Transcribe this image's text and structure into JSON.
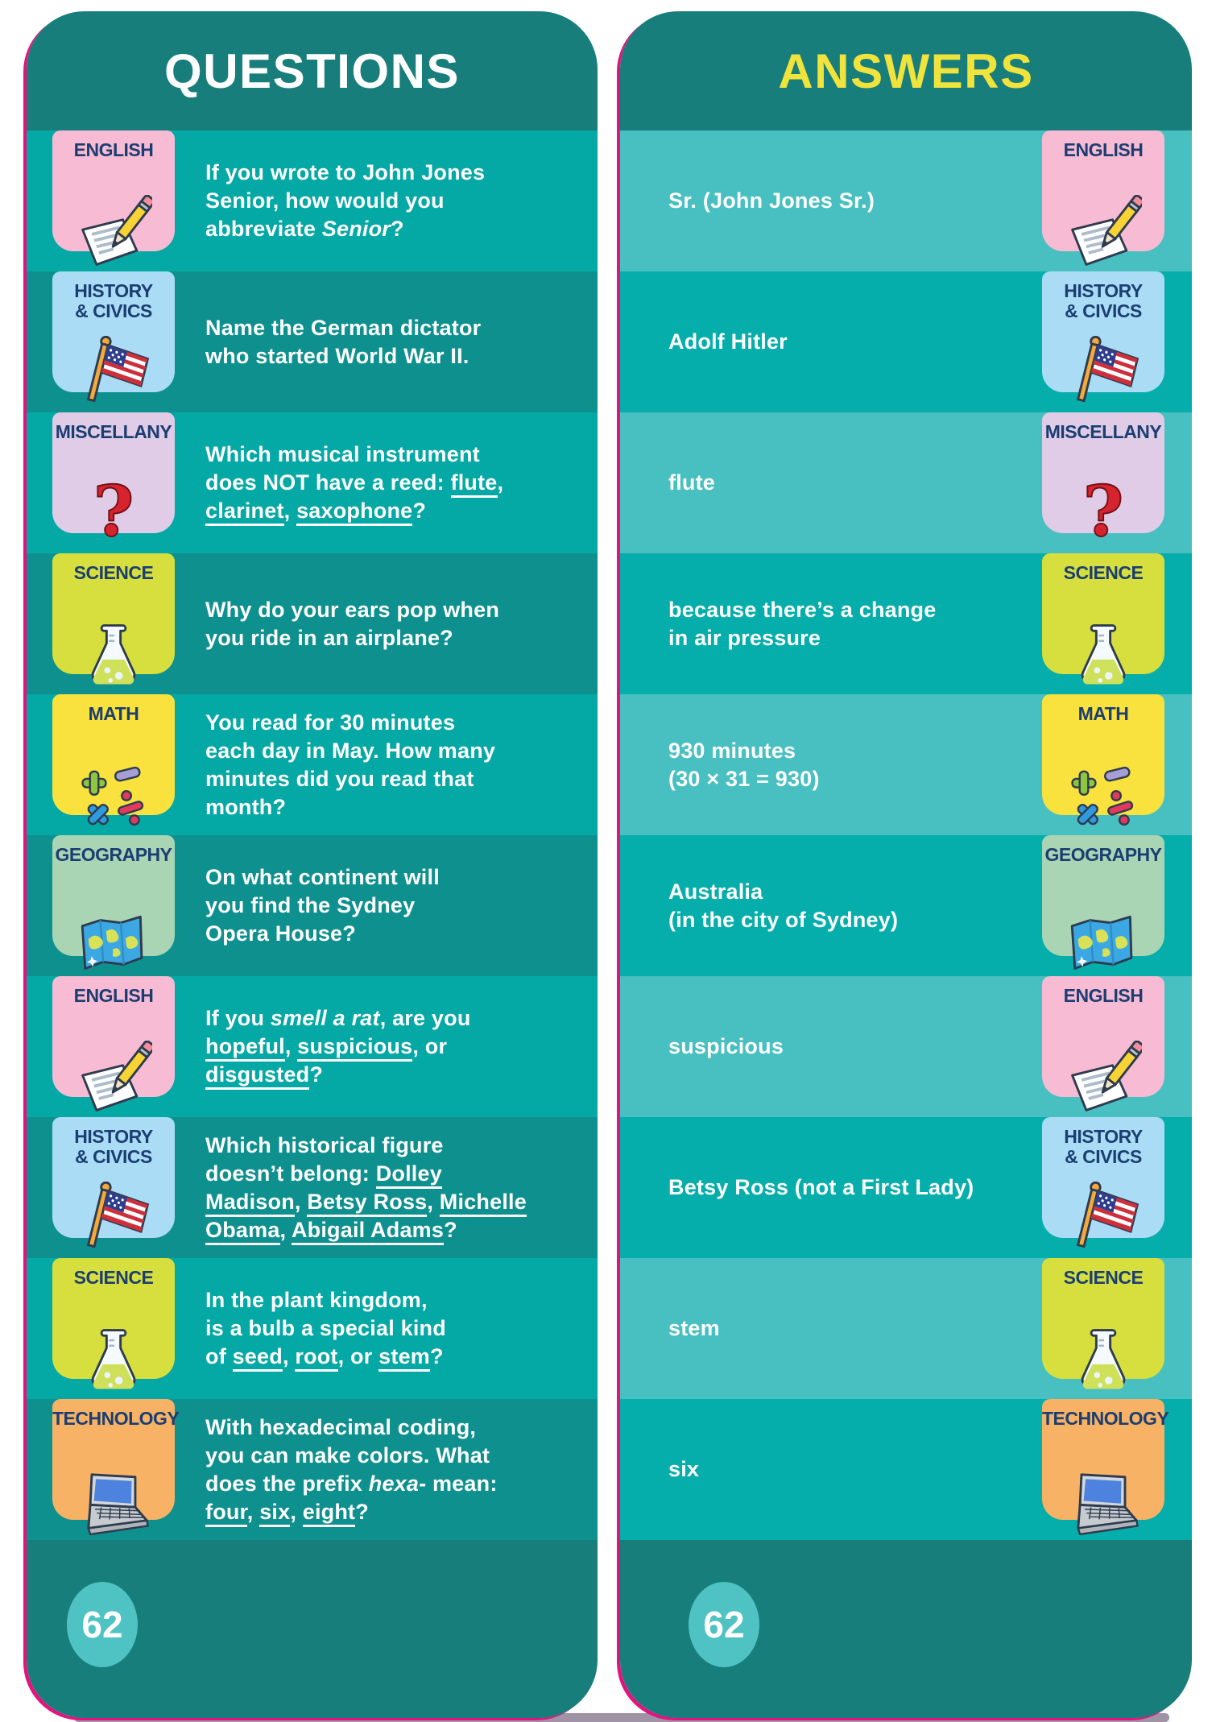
{
  "page": {
    "background": "#FFFFFF",
    "edge_color": "#E3137E",
    "bottom_bar_color": "#A093A6",
    "badge_label_color": "#1B3E72",
    "circle_color": "#4FC2C4"
  },
  "categories": {
    "english": {
      "label": "ENGLISH",
      "label_lines": [
        "ENGLISH"
      ],
      "color": "#F8BBD4",
      "icon": "paper-pencil-icon"
    },
    "history": {
      "label": "HISTORY & CIVICS",
      "label_lines": [
        "HISTORY",
        "& CIVICS"
      ],
      "color": "#ABDCF5",
      "icon": "us-flag-icon"
    },
    "miscellany": {
      "label": "MISCELLANY",
      "label_lines": [
        "MISCELLANY"
      ],
      "color": "#E0CCE6",
      "icon": "question-mark-icon"
    },
    "science": {
      "label": "SCIENCE",
      "label_lines": [
        "SCIENCE"
      ],
      "color": "#D6DF3E",
      "icon": "flask-icon"
    },
    "math": {
      "label": "MATH",
      "label_lines": [
        "MATH"
      ],
      "color": "#F9E23D",
      "icon": "math-symbols-icon"
    },
    "geography": {
      "label": "GEOGRAPHY",
      "label_lines": [
        "GEOGRAPHY"
      ],
      "color": "#A9D5B4",
      "icon": "map-icon"
    },
    "technology": {
      "label": "TECHNOLOGY",
      "label_lines": [
        "TECHNOLOGY"
      ],
      "color": "#F7B266",
      "icon": "laptop-icon"
    }
  },
  "cards": [
    {
      "title": "QUESTIONS",
      "title_color": "#FFFFFF",
      "header_color": "#177E7B",
      "row_colors": [
        "#04A8A5",
        "#0E908F"
      ],
      "badge_side": "left",
      "page_number": "62",
      "rows": [
        {
          "category": "english",
          "segments": [
            {
              "t": "If you wrote to John Jones"
            },
            {
              "br": true
            },
            {
              "t": "Senior, how would you"
            },
            {
              "br": true
            },
            {
              "t": "abbreviate "
            },
            {
              "t": "Senior",
              "i": true
            },
            {
              "t": "?"
            }
          ]
        },
        {
          "category": "history",
          "segments": [
            {
              "t": "Name the German dictator"
            },
            {
              "br": true
            },
            {
              "t": "who started World War II."
            }
          ]
        },
        {
          "category": "miscellany",
          "segments": [
            {
              "t": "Which musical instrument"
            },
            {
              "br": true
            },
            {
              "t": "does NOT have a reed: "
            },
            {
              "t": "flute",
              "u": true
            },
            {
              "t": ","
            },
            {
              "br": true
            },
            {
              "t": "clarinet",
              "u": true
            },
            {
              "t": ", "
            },
            {
              "t": "saxophone",
              "u": true
            },
            {
              "t": "?"
            }
          ]
        },
        {
          "category": "science",
          "segments": [
            {
              "t": "Why do your ears pop when"
            },
            {
              "br": true
            },
            {
              "t": "you ride in an airplane?"
            }
          ]
        },
        {
          "category": "math",
          "segments": [
            {
              "t": "You read for 30 minutes"
            },
            {
              "br": true
            },
            {
              "t": "each day in May. How many"
            },
            {
              "br": true
            },
            {
              "t": "minutes did you read that"
            },
            {
              "br": true
            },
            {
              "t": "month?"
            }
          ]
        },
        {
          "category": "geography",
          "segments": [
            {
              "t": "On what continent will"
            },
            {
              "br": true
            },
            {
              "t": "you find the Sydney"
            },
            {
              "br": true
            },
            {
              "t": "Opera House?"
            }
          ]
        },
        {
          "category": "english",
          "segments": [
            {
              "t": "If you "
            },
            {
              "t": "smell a rat",
              "i": true
            },
            {
              "t": ", are you"
            },
            {
              "br": true
            },
            {
              "t": "hopeful",
              "u": true
            },
            {
              "t": ", "
            },
            {
              "t": "suspicious",
              "u": true
            },
            {
              "t": ", or"
            },
            {
              "br": true
            },
            {
              "t": "disgusted",
              "u": true
            },
            {
              "t": "?"
            }
          ]
        },
        {
          "category": "history",
          "segments": [
            {
              "t": "Which historical figure"
            },
            {
              "br": true
            },
            {
              "t": "doesn’t belong: "
            },
            {
              "t": "Dolley",
              "u": true
            },
            {
              "br": true
            },
            {
              "t": "Madison",
              "u": true
            },
            {
              "t": ", "
            },
            {
              "t": "Betsy Ross",
              "u": true
            },
            {
              "t": ", "
            },
            {
              "t": "Michelle",
              "u": true
            },
            {
              "br": true
            },
            {
              "t": "Obama",
              "u": true
            },
            {
              "t": ", "
            },
            {
              "t": "Abigail Adams",
              "u": true
            },
            {
              "t": "?"
            }
          ]
        },
        {
          "category": "science",
          "segments": [
            {
              "t": "In the plant kingdom,"
            },
            {
              "br": true
            },
            {
              "t": "is a bulb a special kind"
            },
            {
              "br": true
            },
            {
              "t": "of "
            },
            {
              "t": "seed",
              "u": true
            },
            {
              "t": ", "
            },
            {
              "t": "root",
              "u": true
            },
            {
              "t": ", or "
            },
            {
              "t": "stem",
              "u": true
            },
            {
              "t": "?"
            }
          ]
        },
        {
          "category": "technology",
          "segments": [
            {
              "t": "With hexadecimal coding,"
            },
            {
              "br": true
            },
            {
              "t": "you can make colors. What"
            },
            {
              "br": true
            },
            {
              "t": "does the prefix "
            },
            {
              "t": "hexa-",
              "i": true
            },
            {
              "t": " mean:"
            },
            {
              "br": true
            },
            {
              "t": "four",
              "u": true
            },
            {
              "t": ", "
            },
            {
              "t": "six",
              "u": true
            },
            {
              "t": ", "
            },
            {
              "t": "eight",
              "u": true
            },
            {
              "t": "?"
            }
          ]
        }
      ]
    },
    {
      "title": "ANSWERS",
      "title_color": "#F0E33C",
      "header_color": "#177E7B",
      "row_colors": [
        "#48BFC0",
        "#05AEAB"
      ],
      "badge_side": "right",
      "page_number": "62",
      "rows": [
        {
          "category": "english",
          "segments": [
            {
              "t": "Sr. (John Jones Sr.)"
            }
          ]
        },
        {
          "category": "history",
          "segments": [
            {
              "t": "Adolf Hitler"
            }
          ]
        },
        {
          "category": "miscellany",
          "segments": [
            {
              "t": "flute"
            }
          ]
        },
        {
          "category": "science",
          "segments": [
            {
              "t": "because there’s a change"
            },
            {
              "br": true
            },
            {
              "t": "in air pressure"
            }
          ]
        },
        {
          "category": "math",
          "segments": [
            {
              "t": "930 minutes"
            },
            {
              "br": true
            },
            {
              "t": "(30 × 31 = 930)"
            }
          ]
        },
        {
          "category": "geography",
          "segments": [
            {
              "t": "Australia"
            },
            {
              "br": true
            },
            {
              "t": "(in the city of Sydney)"
            }
          ]
        },
        {
          "category": "english",
          "segments": [
            {
              "t": "suspicious"
            }
          ]
        },
        {
          "category": "history",
          "segments": [
            {
              "t": "Betsy Ross (not a First Lady)"
            }
          ]
        },
        {
          "category": "science",
          "segments": [
            {
              "t": "stem"
            }
          ]
        },
        {
          "category": "technology",
          "segments": [
            {
              "t": "six"
            }
          ]
        }
      ]
    }
  ]
}
